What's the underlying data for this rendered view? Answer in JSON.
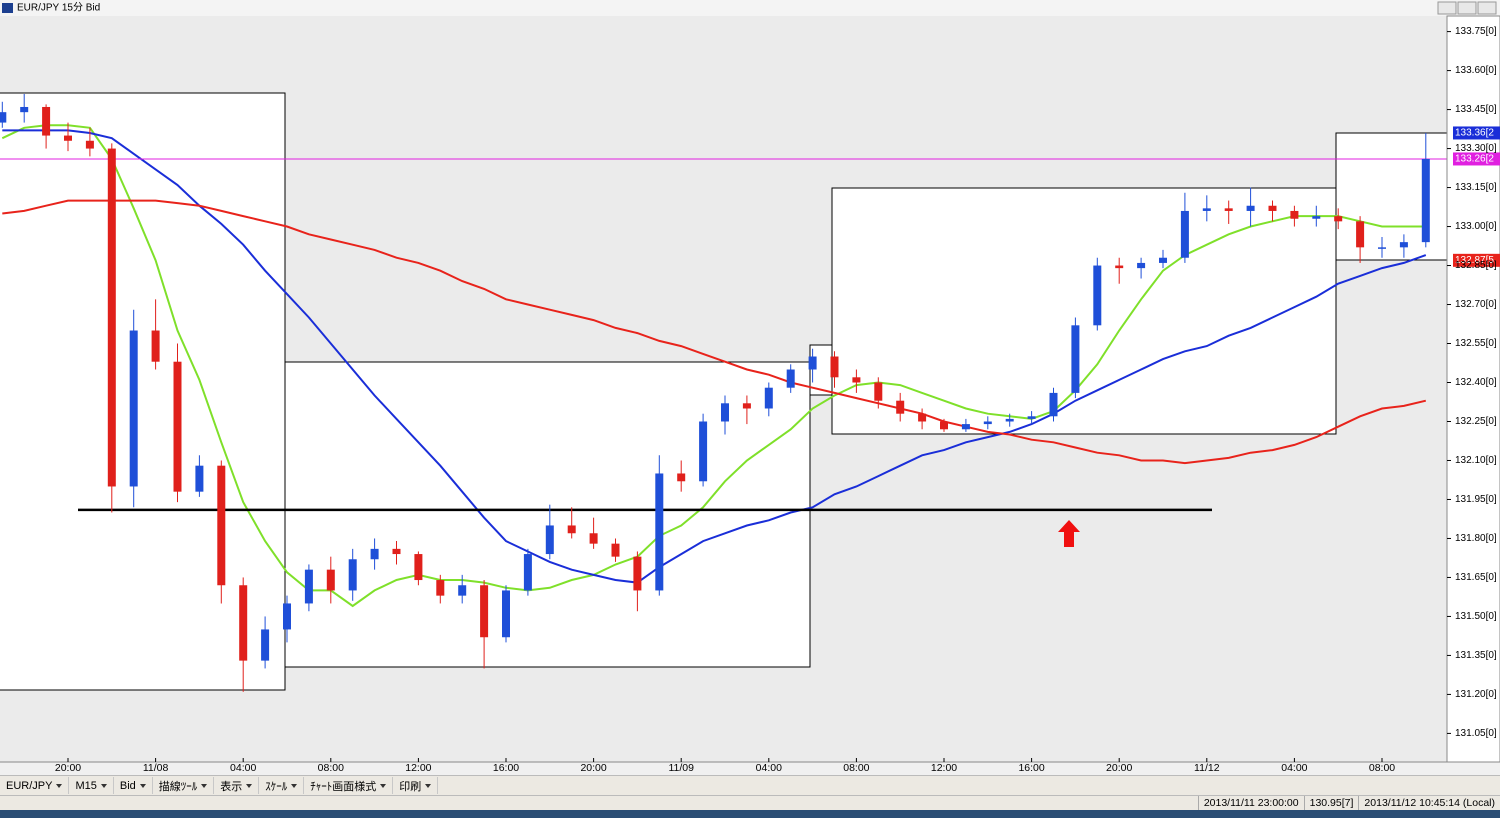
{
  "window": {
    "title": "EUR/JPY 15分 Bid"
  },
  "chart_data": {
    "type": "candlestick",
    "categories": [
      null,
      null,
      null,
      "20:00",
      null,
      null,
      null,
      "11/08",
      null,
      null,
      null,
      "04:00",
      null,
      null,
      null,
      "08:00",
      null,
      null,
      null,
      "12:00",
      null,
      null,
      null,
      "16:00",
      null,
      null,
      null,
      "20:00",
      null,
      null,
      null,
      "11/09",
      null,
      null,
      null,
      "04:00",
      null,
      null,
      null,
      "08:00",
      null,
      null,
      null,
      "12:00",
      null,
      null,
      null,
      "16:00",
      null,
      null,
      null,
      "20:00",
      null,
      null,
      null,
      "11/12",
      null,
      null,
      null,
      "04:00",
      null,
      null,
      null,
      "08:00",
      null,
      null
    ],
    "open": [
      133.4,
      133.44,
      133.46,
      133.35,
      133.33,
      133.3,
      132.0,
      132.6,
      132.48,
      131.98,
      132.08,
      131.62,
      131.33,
      131.45,
      131.55,
      131.68,
      131.6,
      131.72,
      131.76,
      131.74,
      131.64,
      131.58,
      131.62,
      131.42,
      131.6,
      131.74,
      131.85,
      131.82,
      131.78,
      131.73,
      131.6,
      132.05,
      132.02,
      132.25,
      132.32,
      132.3,
      132.38,
      132.45,
      132.5,
      132.42,
      132.4,
      132.33,
      132.28,
      132.25,
      132.22,
      132.24,
      132.25,
      132.26,
      132.27,
      132.36,
      132.62,
      132.85,
      132.84,
      132.86,
      132.88,
      133.06,
      133.07,
      133.06,
      133.08,
      133.06,
      133.03,
      133.04,
      133.02,
      132.92,
      132.92,
      132.94
    ],
    "high": [
      133.48,
      133.51,
      133.47,
      133.4,
      133.38,
      133.32,
      132.68,
      132.72,
      132.55,
      132.12,
      132.1,
      131.65,
      131.5,
      131.58,
      131.7,
      131.73,
      131.76,
      131.8,
      131.79,
      131.75,
      131.66,
      131.66,
      131.64,
      131.62,
      131.76,
      131.93,
      131.92,
      131.88,
      131.8,
      131.75,
      132.12,
      132.1,
      132.28,
      132.35,
      132.35,
      132.4,
      132.47,
      132.53,
      132.52,
      132.45,
      132.42,
      132.36,
      132.3,
      132.26,
      132.26,
      132.27,
      132.28,
      132.29,
      132.38,
      132.65,
      132.88,
      132.88,
      132.88,
      132.91,
      133.13,
      133.12,
      133.1,
      133.15,
      133.1,
      133.08,
      133.08,
      133.07,
      133.04,
      132.96,
      132.97,
      133.36
    ],
    "low": [
      133.38,
      133.4,
      133.3,
      133.29,
      133.27,
      131.9,
      131.92,
      132.45,
      131.94,
      131.96,
      131.55,
      131.21,
      131.3,
      131.4,
      131.52,
      131.55,
      131.56,
      131.68,
      131.7,
      131.62,
      131.55,
      131.55,
      131.3,
      131.4,
      131.58,
      131.72,
      131.8,
      131.76,
      131.71,
      131.52,
      131.58,
      131.98,
      132.0,
      132.2,
      132.24,
      132.27,
      132.36,
      132.4,
      132.38,
      132.36,
      132.3,
      132.25,
      132.22,
      132.21,
      132.21,
      132.22,
      132.23,
      132.24,
      132.25,
      132.34,
      132.6,
      132.78,
      132.8,
      132.84,
      132.86,
      133.02,
      133.01,
      133.0,
      133.02,
      133.0,
      133.0,
      132.99,
      132.86,
      132.88,
      132.88,
      132.92
    ],
    "close": [
      133.44,
      133.46,
      133.35,
      133.33,
      133.3,
      132.0,
      132.6,
      132.48,
      131.98,
      132.08,
      131.62,
      131.33,
      131.45,
      131.55,
      131.68,
      131.6,
      131.72,
      131.76,
      131.74,
      131.64,
      131.58,
      131.62,
      131.42,
      131.6,
      131.74,
      131.85,
      131.82,
      131.78,
      131.73,
      131.6,
      132.05,
      132.02,
      132.25,
      132.32,
      132.3,
      132.38,
      132.45,
      132.5,
      132.42,
      132.4,
      132.33,
      132.28,
      132.25,
      132.22,
      132.24,
      132.25,
      132.26,
      132.27,
      132.36,
      132.62,
      132.85,
      132.84,
      132.86,
      132.88,
      133.06,
      133.07,
      133.06,
      133.08,
      133.06,
      133.03,
      133.04,
      133.02,
      132.92,
      132.92,
      132.94,
      133.26
    ],
    "up_color": "#1f4fd8",
    "down_color": "#e0201b",
    "series": [
      {
        "color": "#7fe02a",
        "values": [
          133.34,
          133.38,
          133.39,
          133.39,
          133.38,
          133.26,
          133.07,
          132.87,
          132.6,
          132.41,
          132.17,
          131.94,
          131.79,
          131.67,
          131.6,
          131.6,
          131.54,
          131.6,
          131.64,
          131.66,
          131.64,
          131.64,
          131.63,
          131.61,
          131.6,
          131.61,
          131.64,
          131.66,
          131.7,
          131.73,
          131.81,
          131.85,
          131.92,
          132.02,
          132.1,
          132.16,
          132.22,
          132.3,
          132.35,
          132.39,
          132.4,
          132.39,
          132.36,
          132.33,
          132.3,
          132.28,
          132.27,
          132.26,
          132.29,
          132.37,
          132.47,
          132.6,
          132.72,
          132.83,
          132.89,
          132.93,
          132.97,
          133.0,
          133.02,
          133.04,
          133.04,
          133.04,
          133.02,
          133.0,
          133.0,
          133.0
        ]
      },
      {
        "color": "#1a2ed8",
        "values": [
          133.37,
          133.37,
          133.37,
          133.37,
          133.36,
          133.34,
          133.28,
          133.22,
          133.16,
          133.08,
          133.01,
          132.93,
          132.83,
          132.74,
          132.65,
          132.55,
          132.45,
          132.35,
          132.26,
          132.17,
          132.08,
          131.98,
          131.88,
          131.79,
          131.75,
          131.71,
          131.68,
          131.66,
          131.64,
          131.63,
          131.69,
          131.74,
          131.79,
          131.82,
          131.85,
          131.87,
          131.9,
          131.92,
          131.97,
          132.0,
          132.04,
          132.08,
          132.12,
          132.14,
          132.17,
          132.19,
          132.21,
          132.24,
          132.28,
          132.33,
          132.37,
          132.41,
          132.45,
          132.49,
          132.52,
          132.54,
          132.58,
          132.61,
          132.65,
          132.69,
          132.73,
          132.78,
          132.81,
          132.84,
          132.86,
          132.89
        ]
      },
      {
        "color": "#e8231b",
        "values": [
          133.05,
          133.06,
          133.08,
          133.1,
          133.1,
          133.1,
          133.1,
          133.1,
          133.09,
          133.08,
          133.06,
          133.04,
          133.02,
          133.0,
          132.97,
          132.95,
          132.93,
          132.91,
          132.88,
          132.86,
          132.83,
          132.79,
          132.76,
          132.72,
          132.7,
          132.68,
          132.66,
          132.64,
          132.61,
          132.59,
          132.56,
          132.54,
          132.51,
          132.48,
          132.45,
          132.43,
          132.4,
          132.38,
          132.36,
          132.34,
          132.32,
          132.3,
          132.28,
          132.25,
          132.23,
          132.21,
          132.2,
          132.18,
          132.17,
          132.15,
          132.13,
          132.12,
          132.1,
          132.1,
          132.09,
          132.1,
          132.11,
          132.13,
          132.14,
          132.16,
          132.19,
          132.23,
          132.27,
          132.3,
          132.31,
          132.33
        ]
      }
    ],
    "ylim": [
      130.94,
      133.81
    ],
    "yticks": [
      {
        "value": 133.75,
        "label": "133.75[0]"
      },
      {
        "value": 133.6,
        "label": "133.60[0]"
      },
      {
        "value": 133.45,
        "label": "133.45[0]"
      },
      {
        "value": 133.3,
        "label": "133.30[0]"
      },
      {
        "value": 133.15,
        "label": "133.15[0]"
      },
      {
        "value": 133.0,
        "label": "133.00[0]"
      },
      {
        "value": 132.85,
        "label": "132.85[0]"
      },
      {
        "value": 132.7,
        "label": "132.70[0]"
      },
      {
        "value": 132.55,
        "label": "132.55[0]"
      },
      {
        "value": 132.4,
        "label": "132.40[0]"
      },
      {
        "value": 132.25,
        "label": "132.25[0]"
      },
      {
        "value": 132.1,
        "label": "132.10[0]"
      },
      {
        "value": 131.95,
        "label": "131.95[0]"
      },
      {
        "value": 131.8,
        "label": "131.80[0]"
      },
      {
        "value": 131.65,
        "label": "131.65[0]"
      },
      {
        "value": 131.5,
        "label": "131.50[0]"
      },
      {
        "value": 131.35,
        "label": "131.35[0]"
      },
      {
        "value": 131.2,
        "label": "131.20[0]"
      },
      {
        "value": 131.05,
        "label": "131.05[0]"
      }
    ],
    "price_tags": [
      {
        "value": 133.36,
        "label": "133.36[2",
        "color": "#1a2ed8",
        "line": false
      },
      {
        "value": 133.26,
        "label": "133.26[2",
        "color": "#e020e0",
        "line": true
      },
      {
        "value": 132.87,
        "label": "132.87[5",
        "color": "#e8231b",
        "line": false
      }
    ],
    "support_line": {
      "value": 131.91,
      "color": "#000000"
    }
  },
  "toolbar": [
    "EUR/JPY",
    "M15",
    "Bid",
    "描線ﾂｰﾙ",
    "表示",
    "ｽｹｰﾙ",
    "ﾁｬｰﾄ画面様式",
    "印刷"
  ],
  "status": [
    "2013/11/11 23:00:00",
    "130.95[7]",
    "2013/11/12 10:45:14 (Local)"
  ]
}
